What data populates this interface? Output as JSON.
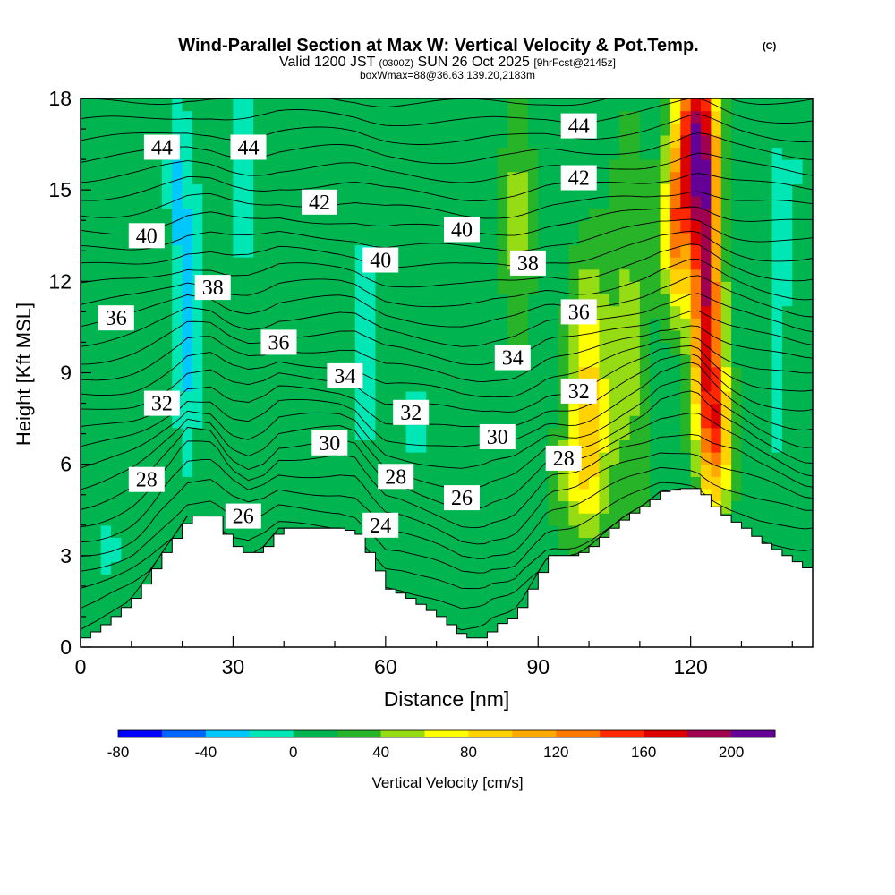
{
  "chart_data": {
    "type": "heatmap",
    "title": "Wind-Parallel Section at Max W: Vertical Velocity & Pot.Temp.",
    "title_mark": "(C)",
    "subtitle": {
      "pre": "Valid 1200 JST",
      "utc": "(0300Z)",
      "date": "SUN 26 Oct 2025",
      "fcst": "[9hrFcst@2145z]"
    },
    "subtitle2": "boxWmax=88@36.63,139.20,2183m",
    "xlabel": "Distance [nm]",
    "ylabel": "Height [Kft MSL]",
    "xlim": [
      0,
      144
    ],
    "ylim": [
      0,
      18
    ],
    "x_ticks": [
      0,
      30,
      60,
      90,
      120
    ],
    "y_ticks": [
      0,
      3,
      6,
      9,
      12,
      15,
      18
    ],
    "colorbar": {
      "label": "Vertical Velocity [cm/s]",
      "bounds": [
        -80,
        -60,
        -40,
        -20,
        0,
        20,
        40,
        60,
        80,
        100,
        120,
        140,
        160,
        180,
        200,
        220
      ],
      "colors": [
        "#0000ff",
        "#0066ff",
        "#00c8ff",
        "#00e6b4",
        "#00b450",
        "#28b428",
        "#96dc14",
        "#ffff00",
        "#ffd200",
        "#ffaa00",
        "#ff7800",
        "#ff2800",
        "#dc0000",
        "#a00050",
        "#640096"
      ],
      "tick_labels": [
        -80,
        -40,
        0,
        40,
        80,
        120,
        160,
        200
      ]
    },
    "terrain": [
      [
        0,
        0.3
      ],
      [
        3,
        0.6
      ],
      [
        6,
        1.0
      ],
      [
        10,
        1.6
      ],
      [
        13,
        2.3
      ],
      [
        16,
        3.1
      ],
      [
        19,
        3.8
      ],
      [
        21,
        4.3
      ],
      [
        26,
        4.3
      ],
      [
        28,
        3.7
      ],
      [
        30,
        3.3
      ],
      [
        33,
        3.0
      ],
      [
        36,
        3.3
      ],
      [
        39,
        3.9
      ],
      [
        45,
        3.9
      ],
      [
        51,
        3.9
      ],
      [
        54,
        3.7
      ],
      [
        57,
        2.8
      ],
      [
        60,
        1.9
      ],
      [
        63,
        1.7
      ],
      [
        67,
        1.3
      ],
      [
        70,
        1.0
      ],
      [
        73,
        0.6
      ],
      [
        75,
        0.3
      ],
      [
        79,
        0.3
      ],
      [
        81,
        0.7
      ],
      [
        85,
        1.0
      ],
      [
        88,
        1.9
      ],
      [
        92,
        3.0
      ],
      [
        97,
        3.0
      ],
      [
        100,
        3.3
      ],
      [
        104,
        3.9
      ],
      [
        107,
        4.3
      ],
      [
        111,
        4.7
      ],
      [
        114,
        5.1
      ],
      [
        118,
        5.2
      ],
      [
        121,
        5.2
      ],
      [
        124,
        4.6
      ],
      [
        127,
        4.2
      ],
      [
        130,
        3.9
      ],
      [
        133,
        3.5
      ],
      [
        136,
        3.2
      ],
      [
        139,
        2.9
      ],
      [
        142,
        2.6
      ],
      [
        144,
        2.6
      ]
    ],
    "w_field": {
      "background": 10,
      "features": [
        {
          "x": 5,
          "y": 9.5,
          "wx": 3,
          "wy": 7,
          "w": -10
        },
        {
          "x": 7,
          "y": 3.0,
          "wx": 6,
          "wy": 1.5,
          "w": -8
        },
        {
          "x": 21,
          "y": 11.0,
          "wx": 2.5,
          "wy": 4.5,
          "w": -40
        },
        {
          "x": 19,
          "y": 15.5,
          "wx": 2,
          "wy": 3,
          "w": -25
        },
        {
          "x": 32,
          "y": 16.0,
          "wx": 2.5,
          "wy": 3,
          "w": -30
        },
        {
          "x": 35,
          "y": 9.0,
          "wx": 4,
          "wy": 6,
          "w": -5
        },
        {
          "x": 56,
          "y": 10.0,
          "wx": 3,
          "wy": 6,
          "w": -15
        },
        {
          "x": 66,
          "y": 7.5,
          "wx": 4,
          "wy": 3,
          "w": -12
        },
        {
          "x": 86,
          "y": 14.0,
          "wx": 3,
          "wy": 4,
          "w": 40
        },
        {
          "x": 100,
          "y": 8.5,
          "wx": 4,
          "wy": 4,
          "w": 75
        },
        {
          "x": 98,
          "y": 5.5,
          "wx": 5,
          "wy": 2,
          "w": 40
        },
        {
          "x": 108,
          "y": 10.0,
          "wx": 4,
          "wy": 7,
          "w": 35
        },
        {
          "x": 121,
          "y": 16.5,
          "wx": 4,
          "wy": 3,
          "w": 175
        },
        {
          "x": 123,
          "y": 11.5,
          "wx": 3,
          "wy": 4.5,
          "w": 160
        },
        {
          "x": 125,
          "y": 7.0,
          "wx": 3,
          "wy": 2.5,
          "w": 110
        },
        {
          "x": 117,
          "y": 13.5,
          "wx": 2.5,
          "wy": 2.5,
          "w": 100
        },
        {
          "x": 137,
          "y": 11.0,
          "wx": 2,
          "wy": 5,
          "w": -25
        },
        {
          "x": 141,
          "y": 15.5,
          "wx": 3,
          "wy": 3,
          "w": -10
        }
      ]
    },
    "theta_contours": [
      {
        "value": 24,
        "x": 59,
        "y": 4.0
      },
      {
        "value": 26,
        "x": 32,
        "y": 4.3
      },
      {
        "value": 26,
        "x": 75,
        "y": 4.9
      },
      {
        "value": 28,
        "x": 13,
        "y": 5.5
      },
      {
        "value": 28,
        "x": 62,
        "y": 5.6
      },
      {
        "value": 28,
        "x": 95,
        "y": 6.2
      },
      {
        "value": 30,
        "x": 49,
        "y": 6.7
      },
      {
        "value": 30,
        "x": 82,
        "y": 6.9
      },
      {
        "value": 32,
        "x": 16,
        "y": 8.0
      },
      {
        "value": 32,
        "x": 65,
        "y": 7.7
      },
      {
        "value": 32,
        "x": 98,
        "y": 8.4
      },
      {
        "value": 34,
        "x": 52,
        "y": 8.9
      },
      {
        "value": 34,
        "x": 85,
        "y": 9.5
      },
      {
        "value": 36,
        "x": 7,
        "y": 10.8
      },
      {
        "value": 36,
        "x": 39,
        "y": 10.0
      },
      {
        "value": 36,
        "x": 98,
        "y": 11.0
      },
      {
        "value": 38,
        "x": 26,
        "y": 11.8
      },
      {
        "value": 38,
        "x": 88,
        "y": 12.6
      },
      {
        "value": 40,
        "x": 13,
        "y": 13.5
      },
      {
        "value": 40,
        "x": 59,
        "y": 12.7
      },
      {
        "value": 40,
        "x": 75,
        "y": 13.7
      },
      {
        "value": 42,
        "x": 47,
        "y": 14.6
      },
      {
        "value": 42,
        "x": 98,
        "y": 15.4
      },
      {
        "value": 44,
        "x": 16,
        "y": 16.4
      },
      {
        "value": 44,
        "x": 33,
        "y": 16.4
      },
      {
        "value": 44,
        "x": 98,
        "y": 17.1
      }
    ]
  }
}
